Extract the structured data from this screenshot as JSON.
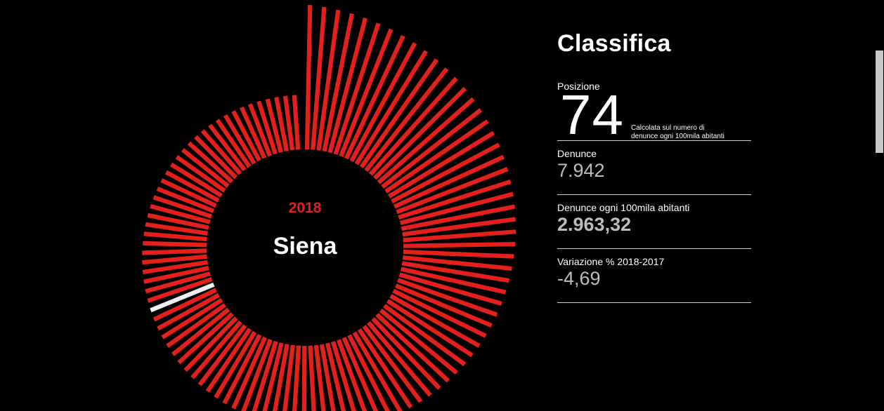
{
  "colors": {
    "background": "#000000",
    "bar": "#e3201b",
    "highlight": "#eeeeee",
    "accent": "#e3201b",
    "muted_value": "#bdbdbd"
  },
  "chart_data": {
    "type": "bar",
    "layout": "radial",
    "year": "2018",
    "selected": "Siena",
    "selected_rank": 74,
    "metric": "Denunce ogni 100mila abitanti",
    "count": 106,
    "sorted": "descending clockwise",
    "max_value": 7000,
    "min_value": 1800,
    "selected_value": 2963.32
  },
  "center": {
    "year": "2018",
    "name": "Siena"
  },
  "panel": {
    "title": "Classifica",
    "position_label": "Posizione",
    "position_value": "74",
    "position_note_line1": "Calcolata sul numero di",
    "position_note_line2": "denunce ogni 100mila abitanti",
    "denunce_label": "Denunce",
    "denunce_value": "7.942",
    "rate_label": "Denunce ogni 100mila abitanti",
    "rate_value": "2.963,32",
    "variation_label": "Variazione % 2018-2017",
    "variation_value": "-4,69"
  }
}
